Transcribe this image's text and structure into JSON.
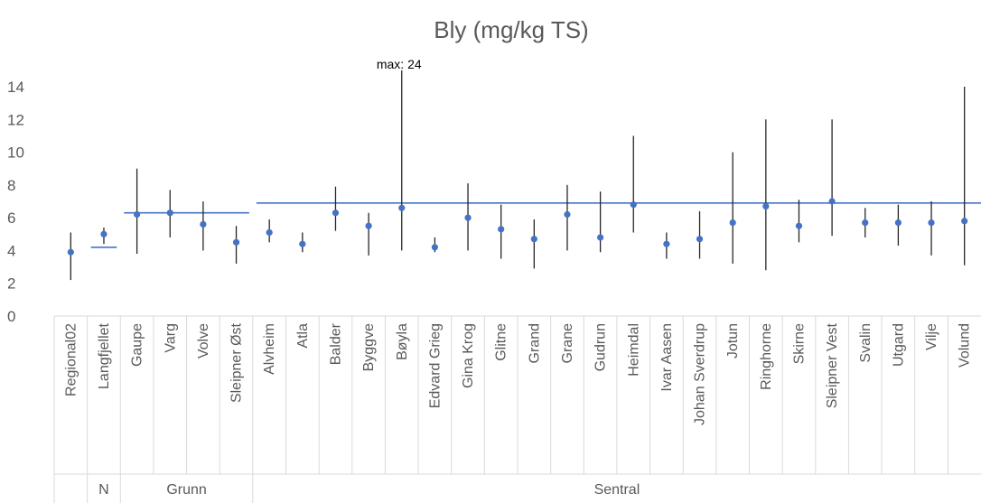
{
  "chart_data": {
    "type": "scatter",
    "title": "Bly (mg/kg TS)",
    "xlabel": "",
    "ylabel": "",
    "ylim": [
      0,
      14
    ],
    "yticks": [
      0,
      2,
      4,
      6,
      8,
      10,
      12,
      14
    ],
    "grid": false,
    "legend": "none",
    "colors": {
      "point": "#4472c4",
      "range": "#262626",
      "mean": "#4472c4",
      "axis": "#d9d9d9",
      "text": "#595959"
    },
    "categories": [
      "Regional02",
      "Langfjellet",
      "Gaupe",
      "Varg",
      "Volve",
      "Sleipner Øst",
      "Alvheim",
      "Atla",
      "Balder",
      "Byggve",
      "Bøyla",
      "Edvard Grieg",
      "Gina Krog",
      "Glitne",
      "Grand",
      "Grane",
      "Gudrun",
      "Heimdal",
      "Ivar Aasen",
      "Johan Sverdrup",
      "Jotun",
      "Ringhorne",
      "Skirne",
      "Sleipner Vest",
      "Svalin",
      "Utgard",
      "Vilje",
      "Volund"
    ],
    "series": [
      {
        "values": [
          3.9,
          5.0,
          6.2,
          6.3,
          5.6,
          4.5,
          5.1,
          4.4,
          6.3,
          5.5,
          6.6,
          4.2,
          6.0,
          5.3,
          4.7,
          6.2,
          4.8,
          6.8,
          4.4,
          4.7,
          5.7,
          6.7,
          5.5,
          7.0,
          5.7,
          5.7,
          5.7,
          5.8
        ]
      }
    ],
    "min": [
      2.2,
      4.4,
      3.8,
      4.8,
      4.0,
      3.2,
      4.5,
      3.9,
      5.2,
      3.7,
      4.0,
      3.9,
      4.0,
      3.5,
      2.9,
      4.0,
      3.9,
      5.1,
      3.5,
      3.5,
      3.2,
      2.8,
      4.5,
      4.9,
      4.8,
      4.3,
      3.7,
      3.1
    ],
    "max": [
      5.1,
      5.4,
      9.0,
      7.7,
      7.0,
      5.5,
      5.9,
      5.1,
      7.9,
      6.3,
      24,
      4.8,
      8.1,
      6.8,
      5.9,
      8.0,
      7.6,
      11.0,
      5.1,
      6.4,
      10.0,
      12.0,
      7.1,
      12.0,
      6.6,
      6.8,
      7.0,
      14.0
    ],
    "groups": [
      {
        "label": "",
        "start": 0,
        "end": 0,
        "mean": null
      },
      {
        "label": "N",
        "start": 1,
        "end": 1,
        "mean": 4.2
      },
      {
        "label": "Grunn",
        "start": 2,
        "end": 5,
        "mean": 6.3
      },
      {
        "label": "Sentral",
        "start": 6,
        "end": 27,
        "mean": 6.9
      }
    ],
    "annotations": [
      {
        "text": "max: 24",
        "category": "Bøyla"
      }
    ]
  }
}
